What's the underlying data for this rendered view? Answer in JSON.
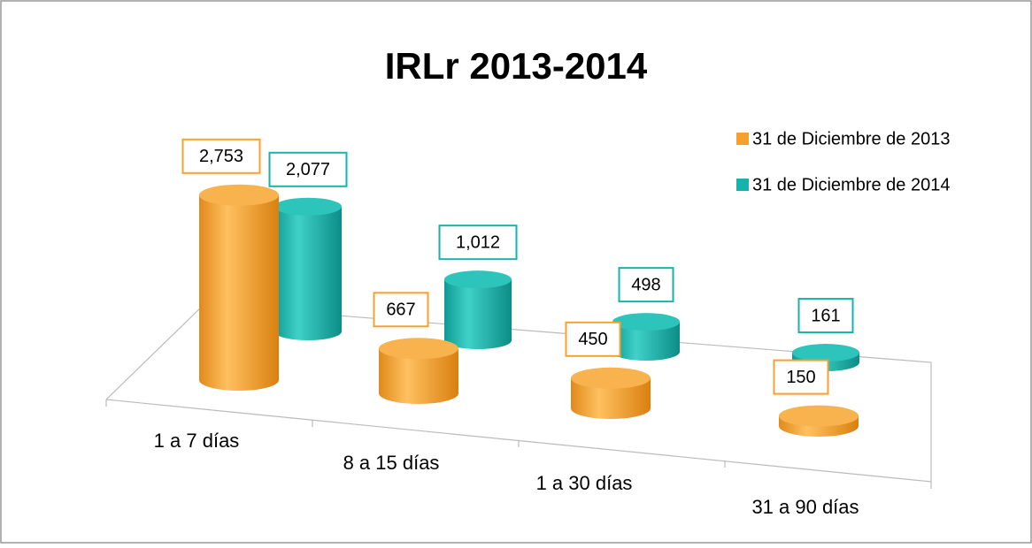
{
  "chart_data": {
    "type": "bar",
    "title": "IRLr 2013-2014",
    "categories": [
      "1 a 7 días",
      "8 a 15 días",
      "1 a 30 días",
      "31 a 90 días"
    ],
    "series": [
      {
        "name": "31 de Diciembre de 2013",
        "color": "#f5a12e",
        "values": [
          2753,
          667,
          450,
          150
        ],
        "value_labels": [
          "2,753",
          "667",
          "450",
          "150"
        ]
      },
      {
        "name": "31 de Diciembre de 2014",
        "color": "#17b3ab",
        "values": [
          2077,
          1012,
          498,
          161
        ],
        "value_labels": [
          "2,077",
          "1,012",
          "498",
          "161"
        ]
      }
    ],
    "legend": "top-right"
  }
}
